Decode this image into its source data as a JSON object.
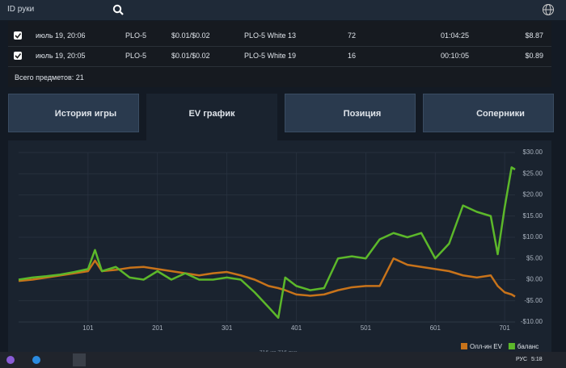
{
  "header": {
    "search_placeholder": "ID руки"
  },
  "table": {
    "rows": [
      [
        "июль 19, 20:06",
        "PLO-5",
        "$0.01/$0.02",
        "PLO-5 White 13",
        "72",
        "01:04:25",
        "$8.87"
      ],
      [
        "июль 19, 20:05",
        "PLO-5",
        "$0.01/$0.02",
        "PLO-5 White 19",
        "16",
        "00:10:05",
        "$0.89"
      ]
    ],
    "footer": "Всего предметов: 21"
  },
  "tabs": [
    "История игры",
    "EV график",
    "Позиция",
    "Соперники"
  ],
  "chart_data": {
    "type": "line",
    "x": [
      1,
      21,
      41,
      61,
      81,
      101,
      111,
      121,
      141,
      161,
      181,
      201,
      221,
      241,
      261,
      281,
      301,
      321,
      341,
      361,
      375,
      385,
      401,
      421,
      441,
      461,
      481,
      501,
      521,
      541,
      561,
      581,
      601,
      621,
      641,
      661,
      681,
      691,
      701,
      711,
      716
    ],
    "series": [
      {
        "name": "Олл-ин EV",
        "color": "#c8731a",
        "values": [
          -0.3,
          0,
          0.5,
          1,
          1.5,
          2,
          4.5,
          2,
          2.3,
          2.8,
          3,
          2.5,
          2,
          1.5,
          1,
          1.5,
          1.8,
          1,
          0,
          -1.5,
          -2,
          -2.5,
          -3.5,
          -3.8,
          -3.5,
          -2.5,
          -1.8,
          -1.5,
          -1.5,
          5,
          3.5,
          3,
          2.5,
          2,
          1,
          0.5,
          1,
          -1.5,
          -3,
          -3.5,
          -4
        ]
      },
      {
        "name": "баланс",
        "color": "#5cb82a",
        "values": [
          0,
          0.5,
          0.8,
          1.2,
          1.8,
          2.5,
          7,
          2,
          3,
          0.5,
          0,
          2,
          0,
          1.5,
          0,
          0,
          0.5,
          0,
          -3,
          -6.5,
          -9,
          0.5,
          -1.5,
          -2.5,
          -2,
          5,
          5.5,
          5,
          9.5,
          11,
          10,
          11,
          5,
          8.5,
          17.5,
          16,
          15,
          6,
          17,
          26.5,
          26
        ]
      }
    ],
    "xlim": [
      1,
      716
    ],
    "ylim": [
      -10,
      30
    ],
    "xticks": [
      101,
      201,
      301,
      401,
      501,
      601,
      701
    ],
    "yticks": [
      {
        "value": 30,
        "label": "$30.00"
      },
      {
        "value": 25,
        "label": "$25.00"
      },
      {
        "value": 20,
        "label": "$20.00"
      },
      {
        "value": 15,
        "label": "$15.00"
      },
      {
        "value": 10,
        "label": "$10.00"
      },
      {
        "value": 5,
        "label": "$5.00"
      },
      {
        "value": 0,
        "label": "$0.00"
      },
      {
        "value": -5,
        "label": "-$5.00"
      },
      {
        "value": -10,
        "label": "-$10.00"
      }
    ],
    "grid": true,
    "legend": "bottom-right",
    "caption": "716 из 716 рук"
  },
  "taskbar": {
    "language": "РУС",
    "time": "5:18"
  }
}
